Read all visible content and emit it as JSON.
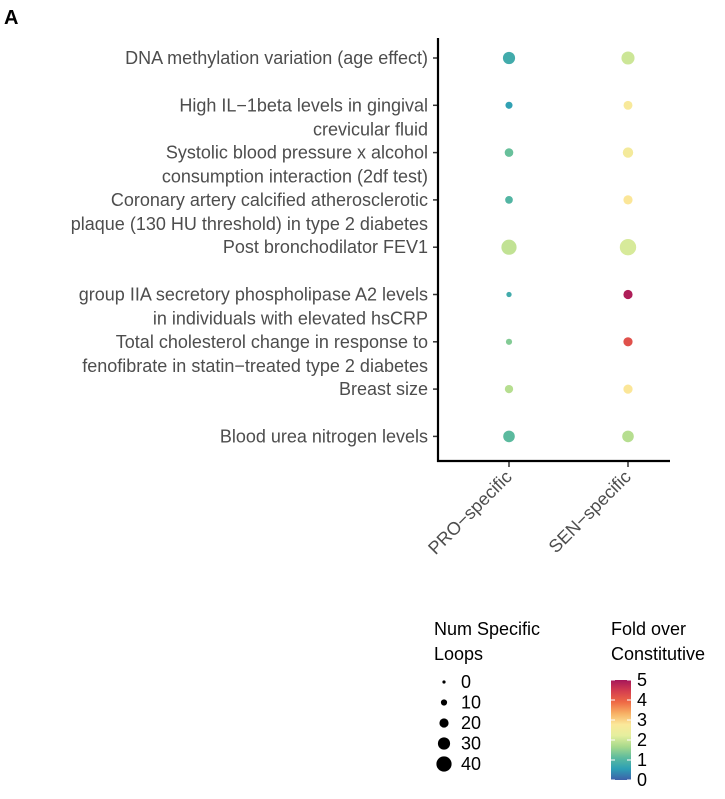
{
  "panel_label": "A",
  "chart_data": {
    "type": "scatter",
    "subtype": "dot-plot",
    "x": [
      "PRO−specific",
      "SEN−specific"
    ],
    "y": [
      [
        "DNA methylation variation (age effect)"
      ],
      [
        "High IL−1beta levels in gingival",
        "crevicular fluid"
      ],
      [
        "Systolic blood pressure x alcohol",
        "consumption interaction (2df test)"
      ],
      [
        "Coronary artery calcified atherosclerotic",
        "plaque (130 HU threshold) in type 2 diabetes"
      ],
      [
        "Post bronchodilator FEV1"
      ],
      [
        "group IIA secretory phospholipase A2 levels",
        "in individuals with elevated hsCRP"
      ],
      [
        "Total cholesterol change in response to",
        "fenofibrate in statin−treated type 2 diabetes"
      ],
      [
        "Breast size"
      ],
      [
        "Blood urea nitrogen levels"
      ]
    ],
    "series": [
      {
        "x": "PRO−specific",
        "num_specific_loops": [
          30,
          13,
          18,
          15,
          40,
          7,
          10,
          17,
          28
        ],
        "fold_over_constitutive": [
          0.8,
          0.6,
          1.2,
          1.0,
          1.9,
          0.8,
          1.4,
          1.8,
          1.1
        ]
      },
      {
        "x": "SEN−specific",
        "num_specific_loops": [
          33,
          19,
          24,
          20,
          44,
          20,
          20,
          20,
          28
        ],
        "fold_over_constitutive": [
          2.0,
          2.7,
          2.6,
          2.8,
          2.1,
          4.9,
          4.2,
          2.8,
          1.8
        ]
      }
    ],
    "size_legend": {
      "title": [
        "Num Specific",
        "Loops"
      ],
      "values": [
        0,
        10,
        20,
        30,
        40
      ]
    },
    "color_legend": {
      "title": [
        "Fold over",
        "Constitutive"
      ],
      "min": 0,
      "max": 5,
      "ticks": [
        0,
        1,
        2,
        3,
        4,
        5
      ],
      "palette": [
        "#3e60a9",
        "#2d9fb5",
        "#5cbb9e",
        "#a7d98c",
        "#e5ef9e",
        "#fbe89a",
        "#f7b064",
        "#ef6a45",
        "#d53e4f",
        "#a6175a"
      ]
    },
    "xlabel": "",
    "ylabel": ""
  }
}
